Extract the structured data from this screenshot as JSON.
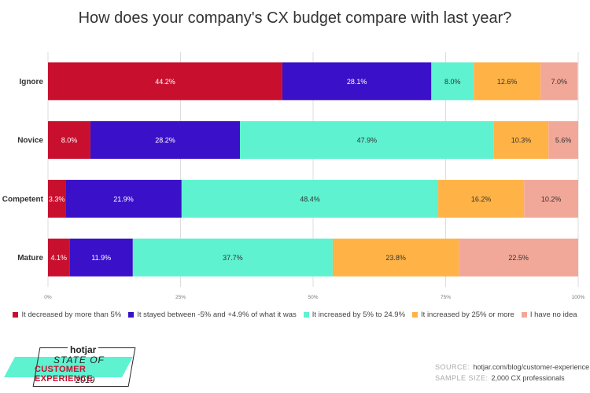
{
  "chart_data": {
    "type": "bar",
    "orientation": "horizontal",
    "stacked": true,
    "title": "How does your company's CX budget compare with last year?",
    "categories": [
      "Ignore",
      "Novice",
      "Competent",
      "Mature"
    ],
    "series": [
      {
        "name": "It decreased by more than 5%",
        "color": "#c8102e",
        "values": [
          44.2,
          8.0,
          3.3,
          4.1
        ],
        "labels": [
          "44.2%",
          "8.0%",
          "3.3%",
          "4.1%"
        ],
        "label_color": "#ffffff"
      },
      {
        "name": "It stayed between -5% and +4.9% of what it was",
        "color": "#3a10c8",
        "values": [
          28.1,
          28.2,
          21.9,
          11.9
        ],
        "labels": [
          "28.1%",
          "28.2%",
          "21.9%",
          "11.9%"
        ],
        "label_color": "#ffffff"
      },
      {
        "name": "It increased by 5% to 24.9%",
        "color": "#5ef2d0",
        "values": [
          8.0,
          47.9,
          48.4,
          37.7
        ],
        "labels": [
          "8.0%",
          "47.9%",
          "48.4%",
          "37.7%"
        ],
        "label_color": "#333333"
      },
      {
        "name": "It increased by 25% or more",
        "color": "#ffb347",
        "values": [
          12.6,
          10.3,
          16.2,
          23.8
        ],
        "labels": [
          "12.6%",
          "10.3%",
          "16.2%",
          "23.8%"
        ],
        "label_color": "#333333"
      },
      {
        "name": "I have no idea",
        "color": "#f2a898",
        "values": [
          7.0,
          5.6,
          10.2,
          22.5
        ],
        "labels": [
          "7.0%",
          "5.6%",
          "10.2%",
          "22.5%"
        ],
        "label_color": "#333333"
      }
    ],
    "xlim": [
      0,
      100
    ],
    "xticks": [
      0,
      25,
      50,
      75,
      100
    ],
    "xtick_labels": [
      "0%",
      "25%",
      "50%",
      "75%",
      "100%"
    ],
    "grid": true,
    "legend_position": "bottom"
  },
  "branding": {
    "brand": "hotjar",
    "line1": "STATE OF",
    "line2": "CUSTOMER EXPERIENCE",
    "line3": "2019"
  },
  "source": {
    "source_label": "SOURCE:",
    "source_value": "hotjar.com/blog/customer-experience",
    "sample_label": "SAMPLE SIZE:",
    "sample_value": "2,000 CX professionals"
  }
}
